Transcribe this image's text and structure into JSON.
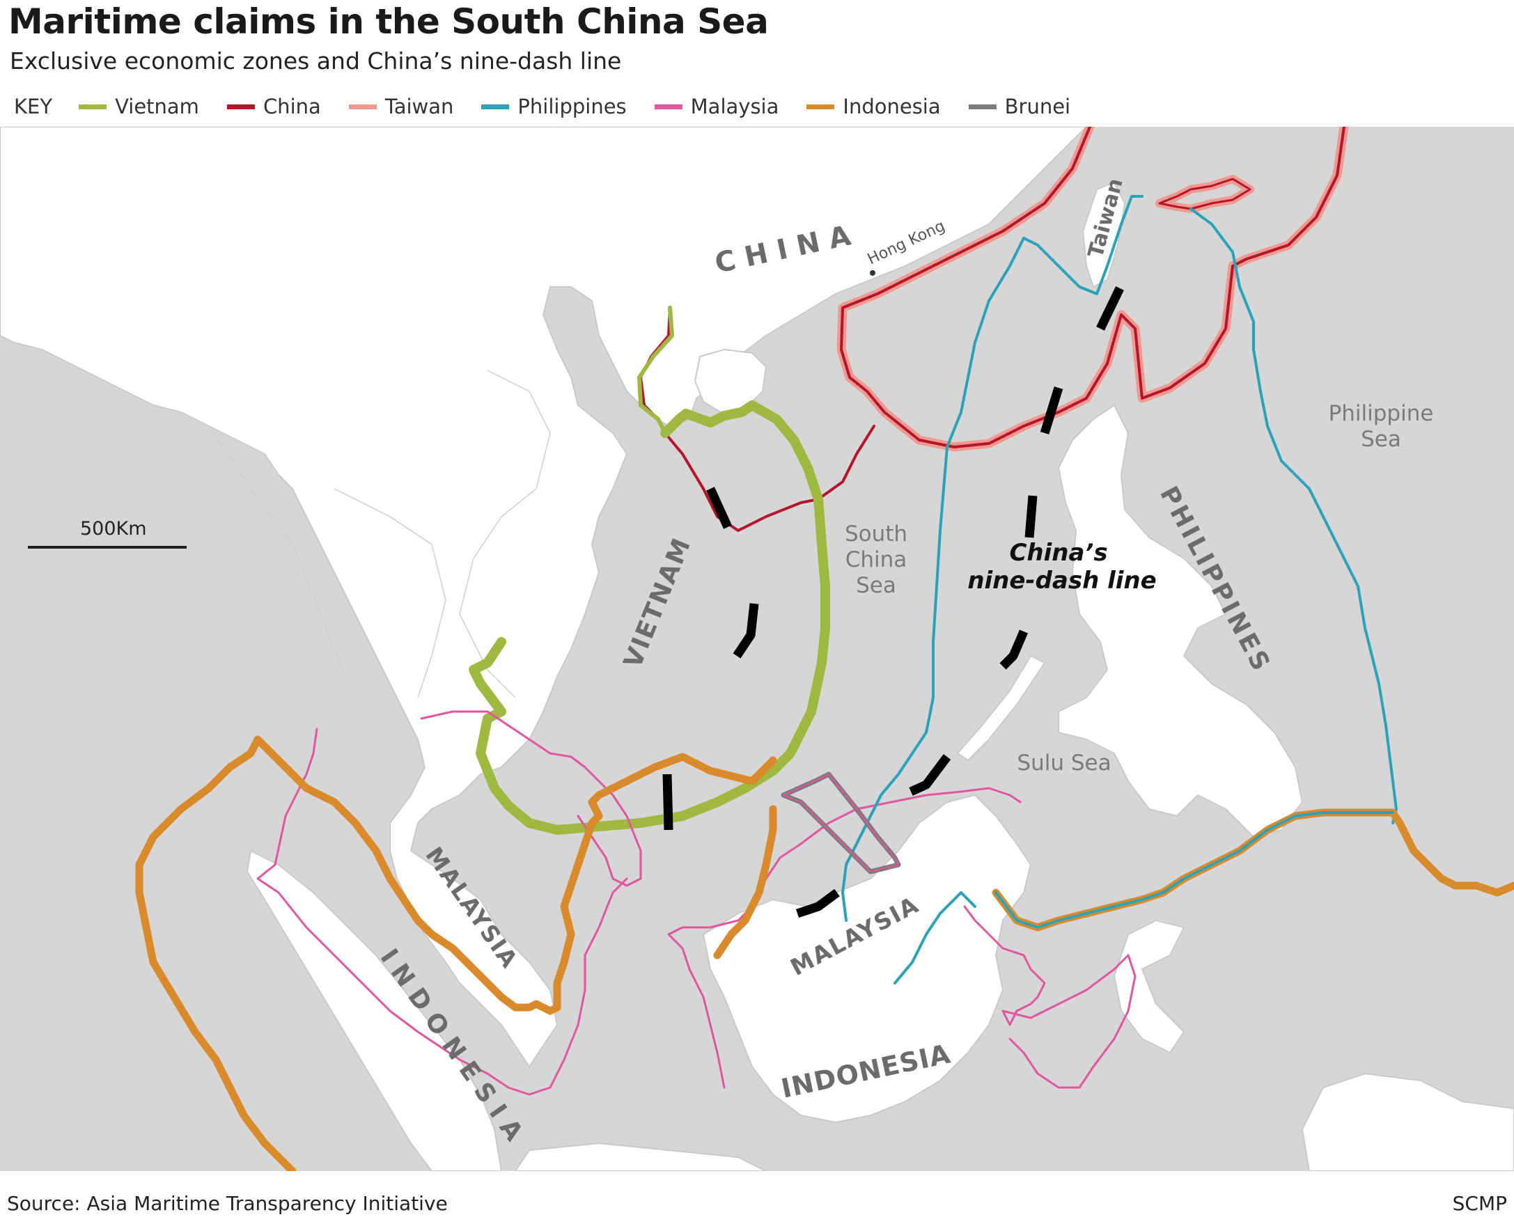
{
  "title": "Maritime claims in the South China Sea",
  "subtitle": "Exclusive economic zones and China’s nine-dash line",
  "key": {
    "label": "KEY",
    "items": [
      {
        "label": "Vietnam",
        "color": "#a0b840"
      },
      {
        "label": "China",
        "color": "#b5142b"
      },
      {
        "label": "Taiwan",
        "color": "#ef9a90"
      },
      {
        "label": "Philippines",
        "color": "#2aa3b8"
      },
      {
        "label": "Malaysia",
        "color": "#e0559e"
      },
      {
        "label": "Indonesia",
        "color": "#d98a2a"
      },
      {
        "label": "Brunei",
        "color": "#7b7b7b"
      }
    ]
  },
  "scale_bar": {
    "label": "500Km"
  },
  "map_labels": {
    "china": "C H I N A",
    "hong_kong": "Hong Kong",
    "taiwan": "Taiwan",
    "vietnam": "VIETNAM",
    "south_china_sea": [
      "South",
      "China",
      "Sea"
    ],
    "nine_dash_line": [
      "China’s",
      "nine-dash line"
    ],
    "philippines": "PHILIPPINES",
    "philippine_sea": [
      "Philippine",
      "Sea"
    ],
    "sulu_sea": "Sulu Sea",
    "malaysia_peninsula": "MALAYSIA",
    "malaysia_borneo": "MALAYSIA",
    "indonesia_sumatra": "I N D O N E S I A",
    "indonesia_borneo": "INDONESIA"
  },
  "colors": {
    "sea": "#d6d6d6",
    "land": "#ffffff",
    "label_gray": "#6b6b6b",
    "nine_dash": "#000000"
  },
  "source": "Source: Asia Maritime Transparency Initiative",
  "credit": "SCMP"
}
